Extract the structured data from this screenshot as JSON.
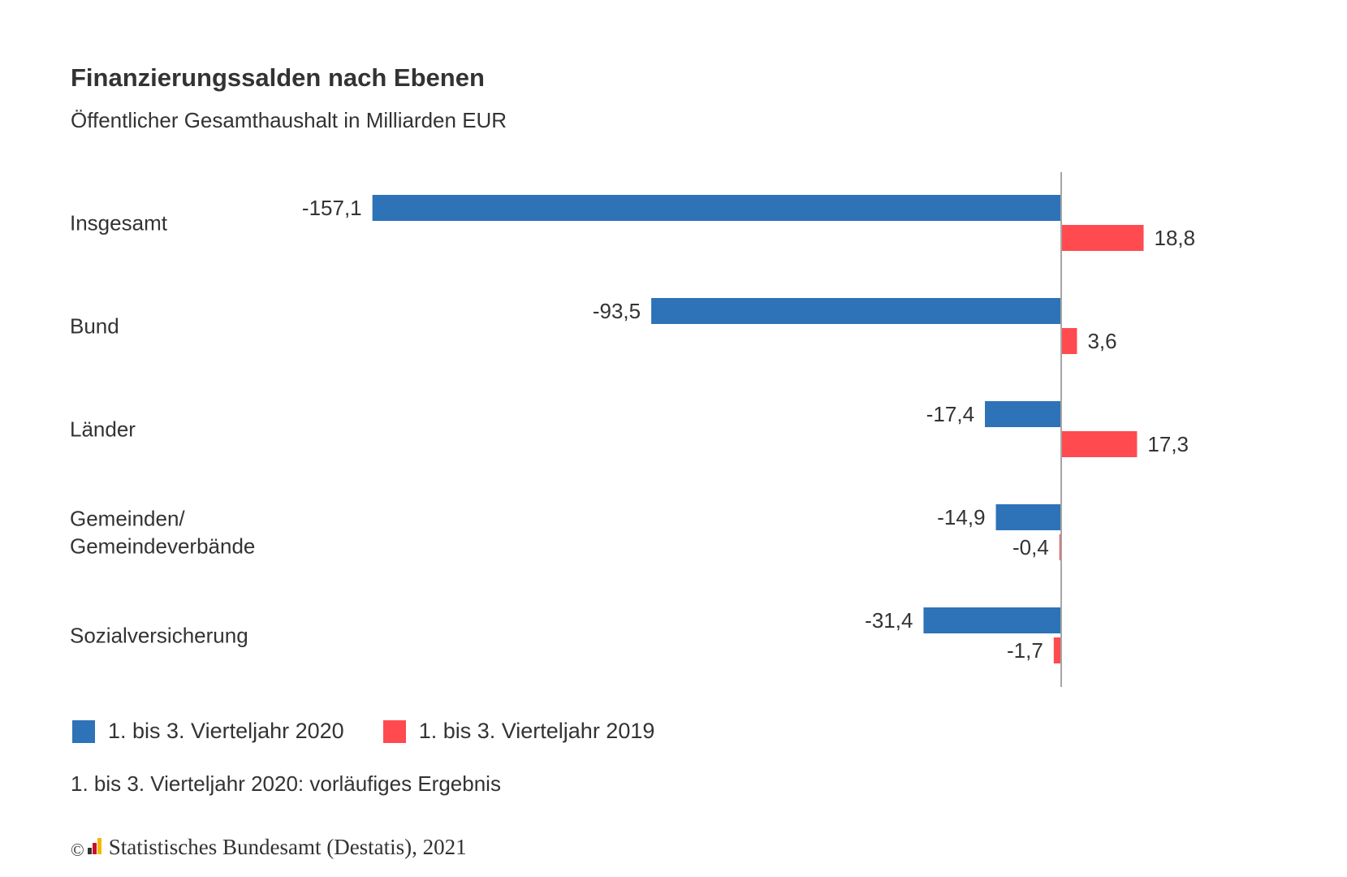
{
  "title": "Finanzierungssalden nach Ebenen",
  "subtitle": "Öffentlicher Gesamthaushalt in Milliarden EUR",
  "note": "1. bis 3. Vierteljahr 2020: vorläufiges Ergebnis",
  "source": {
    "copyright_symbol": "©",
    "text": "Statistisches Bundesamt (Destatis), 2021"
  },
  "colors": {
    "series_2020": "#2e72b8",
    "series_2019": "#ff4a50",
    "axis": "#a6a6a6"
  },
  "chart_data": {
    "type": "bar",
    "orientation": "horizontal",
    "categories": [
      [
        "Insgesamt"
      ],
      [
        "Bund"
      ],
      [
        "Länder"
      ],
      [
        "Gemeinden/",
        "Gemeindeverbände"
      ],
      [
        "Sozialversicherung"
      ]
    ],
    "series": [
      {
        "name": "1. bis 3. Vierteljahr 2020",
        "color": "#2e72b8",
        "values": [
          -157.1,
          -93.5,
          -17.4,
          -14.9,
          -31.4
        ],
        "labels": [
          "-157,1",
          "-93,5",
          "-17,4",
          "-14,9",
          "-31,4"
        ]
      },
      {
        "name": "1. bis 3. Vierteljahr 2019",
        "color": "#ff4a50",
        "values": [
          18.8,
          3.6,
          17.3,
          -0.4,
          -1.7
        ],
        "labels": [
          "18,8",
          "3,6",
          "17,3",
          "-0,4",
          "-1,7"
        ]
      }
    ],
    "title": "Finanzierungssalden nach Ebenen",
    "subtitle": "Öffentlicher Gesamthaushalt in Milliarden EUR",
    "legend_position": "bottom-left",
    "grid": false,
    "xlim": [
      -157.1,
      50
    ],
    "data_labels": true
  }
}
